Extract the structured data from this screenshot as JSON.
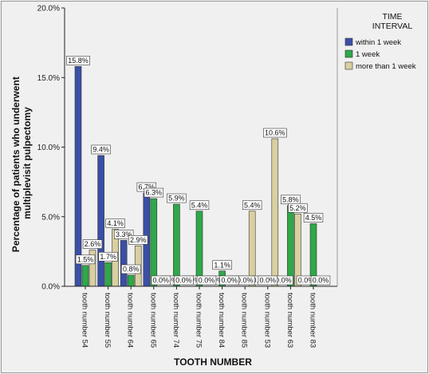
{
  "chart_data": {
    "type": "bar",
    "title": "",
    "xlabel": "TOOTH NUMBER",
    "ylabel_lines": [
      "Percentage of patients who underwent",
      "multiplevisit pulpectomy"
    ],
    "ylim": [
      0,
      20
    ],
    "yticks": [
      0,
      5,
      10,
      15,
      20
    ],
    "ytick_labels": [
      "0.0%",
      "5.0%",
      "10.0%",
      "15.0%",
      "20.0%"
    ],
    "grid": false,
    "legend_position": "top-right",
    "legend_title_lines": [
      "TIME",
      "INTERVAL"
    ],
    "categories": [
      "tooth number 54",
      "tooth number 55",
      "tooth number 64",
      "tooth number 65",
      "tooth number 74",
      "tooth number 75",
      "tooth number 84",
      "tooth number 85",
      "tooth number 53",
      "tooth number 63",
      "tooth number 83"
    ],
    "series": [
      {
        "name": "within 1 week",
        "color": "#3a4fa6",
        "values": [
          15.8,
          9.4,
          3.3,
          6.7,
          0.0,
          0.0,
          0.0,
          0.0,
          0.0,
          0.0,
          0.0
        ],
        "labels": [
          "15.8%",
          "9.4%",
          "3.3%",
          "6.7%",
          "0.0%",
          "0.0%",
          "0.0%",
          "0.0%",
          "0.0%",
          "0.0%",
          "0.0%"
        ]
      },
      {
        "name": "1 week",
        "color": "#2ea84a",
        "values": [
          1.5,
          1.7,
          0.8,
          6.3,
          5.9,
          5.4,
          1.1,
          0.0,
          0.0,
          5.8,
          4.5
        ],
        "labels": [
          "1.5%",
          "1.7%",
          "0.8%",
          "6.3%",
          "5.9%",
          "5.4%",
          "1.1%",
          "0.0%",
          "0.0%",
          "5.8%",
          "4.5%"
        ]
      },
      {
        "name": "more than 1 week",
        "color": "#d8d0a0",
        "values": [
          2.6,
          4.1,
          2.9,
          0.0,
          0.0,
          0.0,
          0.0,
          5.4,
          10.6,
          5.2,
          0.0
        ],
        "labels": [
          "2.6%",
          "4.1%",
          "2.9%",
          "0.0%",
          "0.0%",
          "0.0%",
          "0.0%",
          "5.4%",
          "10.6%",
          "5.2%",
          "0.0%"
        ]
      }
    ]
  }
}
